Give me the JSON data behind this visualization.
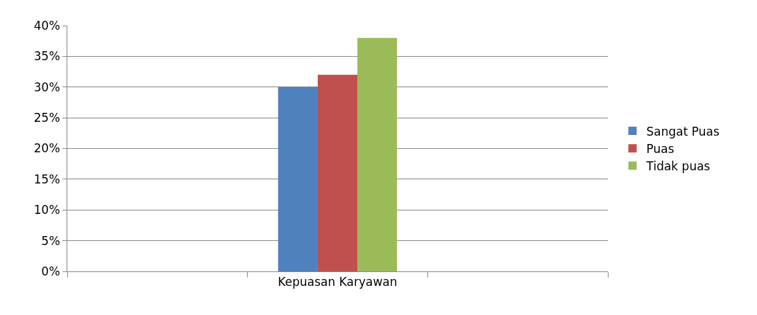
{
  "chart_data": {
    "type": "bar",
    "categories": [
      null,
      "Kepuasan Karyawan",
      null
    ],
    "series": [
      {
        "name": "Sangat Puas",
        "color": "#4f81bd",
        "values": [
          null,
          30,
          null
        ]
      },
      {
        "name": "Puas",
        "color": "#c0504d",
        "values": [
          null,
          32,
          null
        ]
      },
      {
        "name": "Tidak puas",
        "color": "#9bbb59",
        "values": [
          null,
          38,
          null
        ]
      }
    ],
    "ylim": [
      0,
      40
    ],
    "yticks": [
      {
        "value": 0,
        "label": "0%"
      },
      {
        "value": 5,
        "label": "5%"
      },
      {
        "value": 10,
        "label": "10%"
      },
      {
        "value": 15,
        "label": "15%"
      },
      {
        "value": 20,
        "label": "20%"
      },
      {
        "value": 25,
        "label": "25%"
      },
      {
        "value": 30,
        "label": "30%"
      },
      {
        "value": 35,
        "label": "35%"
      },
      {
        "value": 40,
        "label": "40%"
      }
    ],
    "grid": "y",
    "legend": "right"
  }
}
